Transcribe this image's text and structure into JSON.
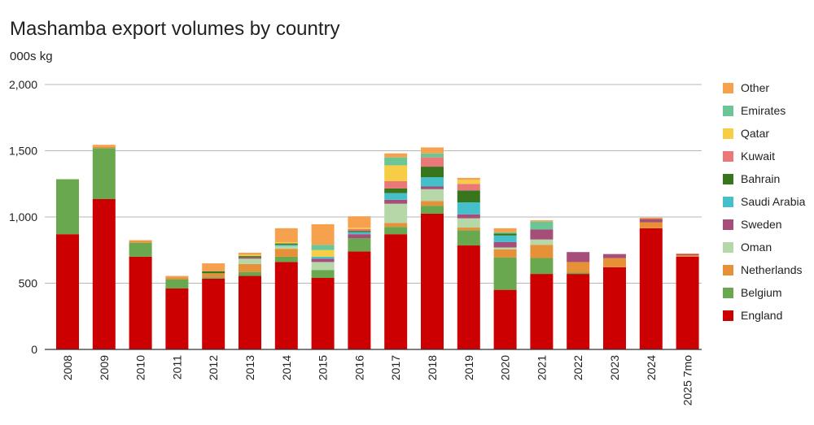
{
  "chart_data": {
    "type": "bar",
    "stacked": true,
    "title": "Mashamba export volumes by country",
    "subtitle": "000s kg",
    "categories": [
      "2008",
      "2009",
      "2010",
      "2011",
      "2012",
      "2013",
      "2014",
      "2015",
      "2016",
      "2017",
      "2018",
      "2019",
      "2020",
      "2021",
      "2022",
      "2023",
      "2024",
      "2025 7mo"
    ],
    "ylim": [
      0,
      2000
    ],
    "yticks": [
      "0",
      "500",
      "1,000",
      "1,500",
      "2,000"
    ],
    "grid": true,
    "legend_position": "right",
    "series": [
      {
        "name": "England",
        "color": "#cc0000",
        "values": [
          870,
          1135,
          700,
          460,
          535,
          555,
          660,
          540,
          740,
          870,
          1025,
          785,
          450,
          570,
          570,
          620,
          915,
          700
        ]
      },
      {
        "name": "Belgium",
        "color": "#6aa84f",
        "values": [
          415,
          385,
          105,
          70,
          10,
          30,
          40,
          60,
          100,
          55,
          60,
          115,
          245,
          120,
          10,
          0,
          0,
          0
        ]
      },
      {
        "name": "Netherlands",
        "color": "#e69138",
        "values": [
          0,
          10,
          15,
          15,
          30,
          60,
          60,
          0,
          0,
          30,
          35,
          20,
          60,
          100,
          80,
          70,
          45,
          10
        ]
      },
      {
        "name": "Oman",
        "color": "#b6d7a8",
        "values": [
          0,
          0,
          0,
          0,
          0,
          40,
          20,
          60,
          0,
          145,
          90,
          70,
          15,
          40,
          0,
          0,
          0,
          0
        ]
      },
      {
        "name": "Sweden",
        "color": "#a64d79",
        "values": [
          0,
          0,
          0,
          0,
          0,
          10,
          0,
          25,
          30,
          30,
          20,
          30,
          40,
          75,
          75,
          30,
          25,
          10
        ]
      },
      {
        "name": "Saudi Arabia",
        "color": "#45bfca",
        "values": [
          0,
          0,
          0,
          0,
          0,
          0,
          10,
          15,
          15,
          50,
          70,
          90,
          50,
          0,
          0,
          0,
          0,
          0
        ]
      },
      {
        "name": "Bahrain",
        "color": "#38761d",
        "values": [
          0,
          0,
          0,
          0,
          15,
          10,
          10,
          0,
          10,
          35,
          80,
          90,
          15,
          0,
          0,
          0,
          0,
          0
        ]
      },
      {
        "name": "Kuwait",
        "color": "#ea7878",
        "values": [
          0,
          0,
          0,
          0,
          0,
          0,
          0,
          0,
          15,
          55,
          70,
          50,
          0,
          0,
          0,
          0,
          0,
          0
        ]
      },
      {
        "name": "Qatar",
        "color": "#f6cd45",
        "values": [
          0,
          0,
          0,
          0,
          0,
          10,
          10,
          50,
          10,
          120,
          0,
          30,
          0,
          0,
          0,
          0,
          0,
          0
        ]
      },
      {
        "name": "Emirates",
        "color": "#6cc594",
        "values": [
          0,
          0,
          0,
          0,
          0,
          0,
          0,
          40,
          0,
          60,
          30,
          0,
          10,
          60,
          0,
          0,
          0,
          0
        ]
      },
      {
        "name": "Other",
        "color": "#f6a14e",
        "values": [
          0,
          15,
          5,
          10,
          60,
          15,
          105,
          155,
          85,
          30,
          45,
          15,
          30,
          10,
          0,
          0,
          10,
          5
        ]
      }
    ]
  }
}
